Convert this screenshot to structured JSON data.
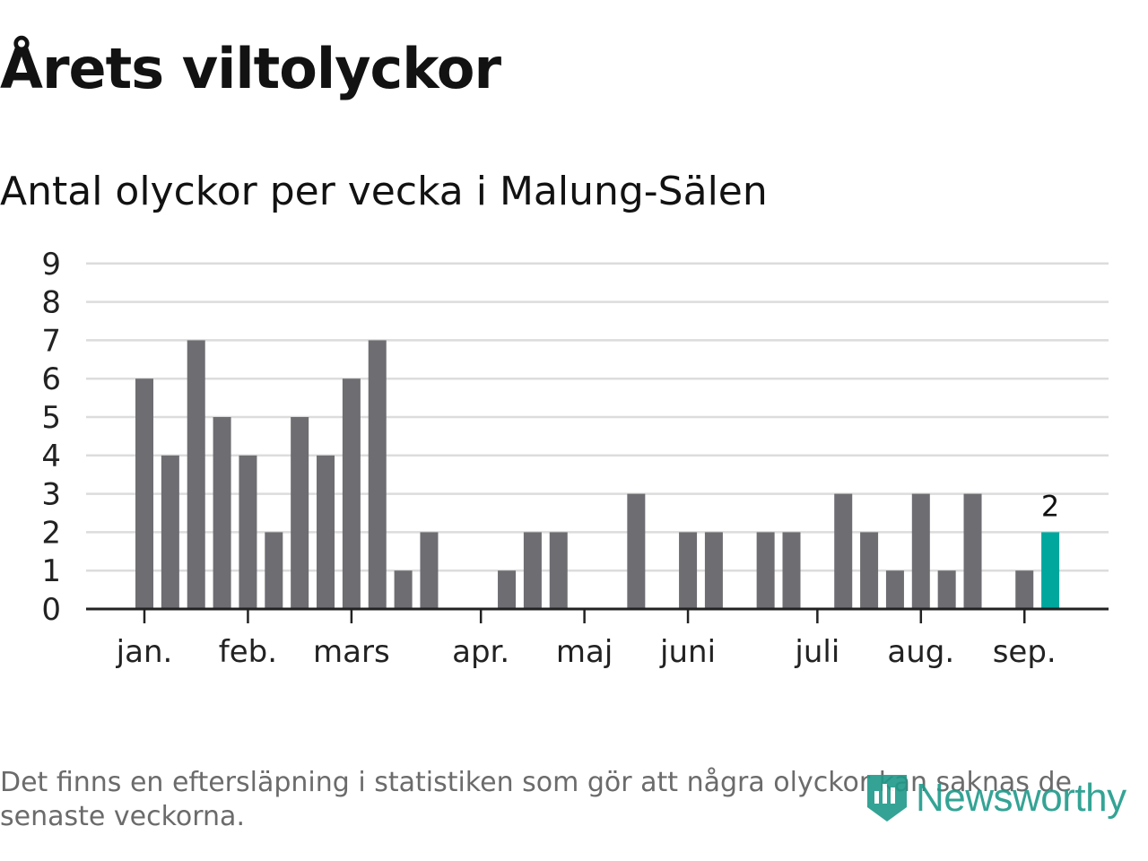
{
  "title": "Årets viltolyckor",
  "subtitle": "Antal olyckor per vecka i Malung-Sälen",
  "footnote": "Det finns en eftersläpning i statistiken som gör att några olyckor kan saknas de senaste veckorna.",
  "logo": {
    "text": "Newsworthy",
    "icon": "newsworthy-logo-icon",
    "color": "#1f9a8a"
  },
  "chart_data": {
    "type": "bar",
    "title": "Antal olyckor per vecka i Malung-Sälen",
    "xlabel": "",
    "ylabel": "",
    "ylim": [
      0,
      9
    ],
    "y_ticks": [
      "0",
      "1",
      "2",
      "3",
      "4",
      "5",
      "6",
      "7",
      "8",
      "9"
    ],
    "grid": true,
    "month_labels": [
      {
        "label": "jan.",
        "week": 1
      },
      {
        "label": "feb.",
        "week": 5
      },
      {
        "label": "mars",
        "week": 9
      },
      {
        "label": "apr.",
        "week": 14
      },
      {
        "label": "maj",
        "week": 18
      },
      {
        "label": "juni",
        "week": 22
      },
      {
        "label": "juli",
        "week": 27
      },
      {
        "label": "aug.",
        "week": 31
      },
      {
        "label": "sep.",
        "week": 35
      }
    ],
    "weeks": [
      1,
      2,
      3,
      4,
      5,
      6,
      7,
      8,
      9,
      10,
      11,
      12,
      13,
      14,
      15,
      16,
      17,
      18,
      19,
      20,
      21,
      22,
      23,
      24,
      25,
      26,
      27,
      28,
      29,
      30,
      31,
      32,
      33,
      34,
      35,
      36
    ],
    "values": [
      6,
      4,
      7,
      5,
      4,
      2,
      5,
      4,
      6,
      7,
      1,
      2,
      0,
      0,
      1,
      2,
      2,
      0,
      0,
      3,
      0,
      2,
      2,
      0,
      2,
      2,
      0,
      3,
      2,
      1,
      3,
      1,
      3,
      0,
      1,
      2
    ],
    "highlight_index": 35,
    "highlight_label": "2",
    "colors": {
      "bar": "#6d6d72",
      "highlight": "#00a79d",
      "grid": "#dcdcdc",
      "axis": "#222222"
    }
  }
}
